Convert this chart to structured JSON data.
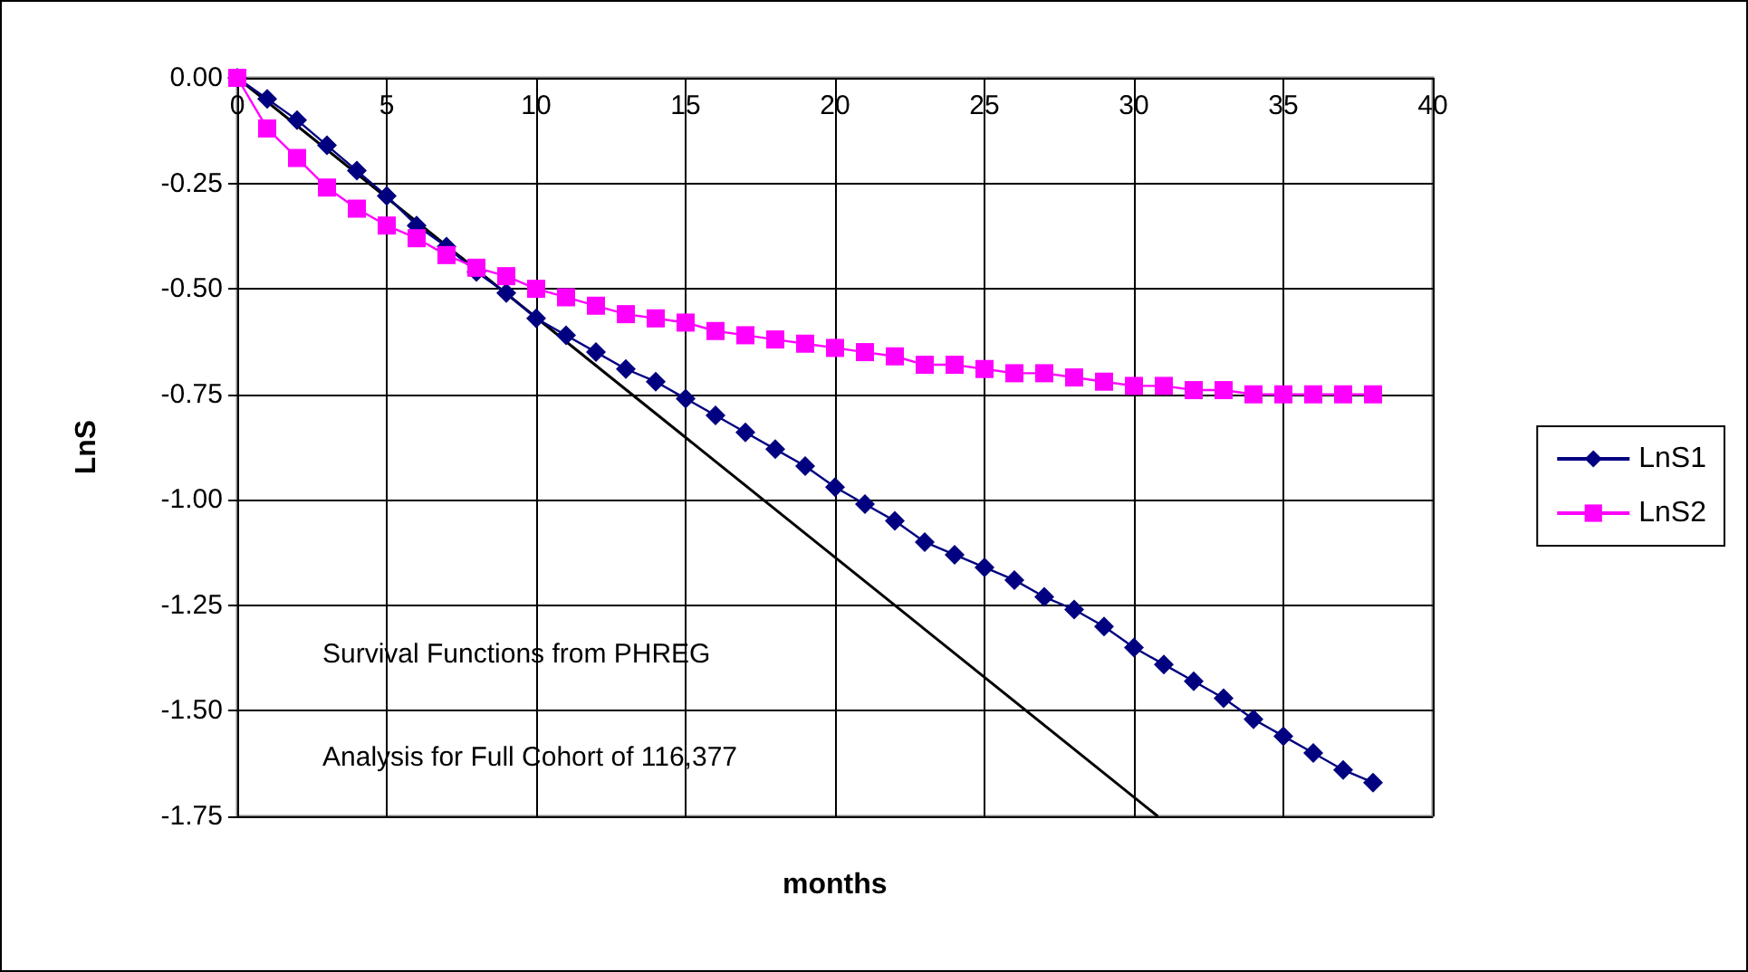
{
  "chart_data": {
    "type": "line",
    "xlabel": "months",
    "ylabel": "LnS",
    "annotations": [
      "Survival Functions from PHREG",
      "Analysis for Full Cohort of 116,377"
    ],
    "xlim": [
      0,
      40
    ],
    "xticks": [
      0,
      5,
      10,
      15,
      20,
      25,
      30,
      35,
      40
    ],
    "ylim": [
      -1.75,
      0
    ],
    "yticks": [
      -1.75,
      {
        "value": -1.5,
        "label": "-1.50"
      },
      -1.25,
      {
        "value": -1,
        "label": "-1.00"
      },
      -0.75,
      {
        "value": -0.5,
        "label": "-0.50"
      },
      -0.25,
      {
        "value": 0,
        "label": "0.00"
      }
    ],
    "grid": true,
    "legend": "right",
    "series": [
      {
        "name": "LnS1",
        "color": "#000080",
        "marker": "diamond",
        "x": [
          0,
          1,
          2,
          3,
          4,
          5,
          6,
          7,
          8,
          9,
          10,
          11,
          12,
          13,
          14,
          15,
          16,
          17,
          18,
          19,
          20,
          21,
          22,
          23,
          24,
          25,
          26,
          27,
          28,
          29,
          30,
          31,
          32,
          33,
          34,
          35,
          36,
          37,
          38
        ],
        "values": [
          0,
          -0.05,
          -0.1,
          -0.16,
          -0.22,
          -0.28,
          -0.35,
          -0.4,
          -0.46,
          -0.51,
          -0.57,
          -0.61,
          -0.65,
          -0.69,
          -0.72,
          -0.76,
          -0.8,
          -0.84,
          -0.88,
          -0.92,
          -0.97,
          -1.01,
          -1.05,
          -1.1,
          -1.13,
          -1.16,
          -1.19,
          -1.23,
          -1.26,
          -1.3,
          -1.35,
          -1.39,
          -1.43,
          -1.47,
          -1.52,
          -1.56,
          -1.6,
          -1.64,
          -1.67
        ]
      },
      {
        "name": "LnS2",
        "color": "#ff00ff",
        "marker": "square",
        "x": [
          0,
          1,
          2,
          3,
          4,
          5,
          6,
          7,
          8,
          9,
          10,
          11,
          12,
          13,
          14,
          15,
          16,
          17,
          18,
          19,
          20,
          21,
          22,
          23,
          24,
          25,
          26,
          27,
          28,
          29,
          30,
          31,
          32,
          33,
          34,
          35,
          36,
          37,
          38
        ],
        "values": [
          0,
          -0.12,
          -0.19,
          -0.26,
          -0.31,
          -0.35,
          -0.38,
          -0.42,
          -0.45,
          -0.47,
          -0.5,
          -0.52,
          -0.54,
          -0.56,
          -0.57,
          -0.58,
          -0.6,
          -0.61,
          -0.62,
          -0.63,
          -0.64,
          -0.65,
          -0.66,
          -0.68,
          -0.68,
          -0.69,
          -0.7,
          -0.7,
          -0.71,
          -0.72,
          -0.73,
          -0.73,
          -0.74,
          -0.74,
          -0.75,
          -0.75,
          -0.75,
          -0.75,
          -0.75
        ]
      },
      {
        "color": "#000000",
        "marker": "none",
        "x": [
          0,
          30.8
        ],
        "values": [
          0,
          -1.75
        ]
      }
    ]
  }
}
